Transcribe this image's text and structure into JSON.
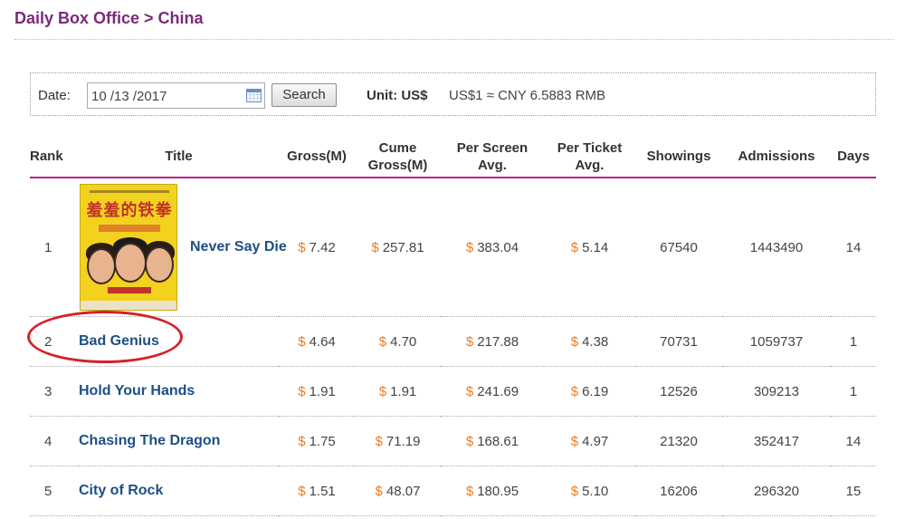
{
  "header": {
    "title": "Daily Box Office > China"
  },
  "filters": {
    "date_label": "Date:",
    "date_value": "10 /13 /2017",
    "search_label": "Search",
    "unit_label": "Unit: US$",
    "exchange_rate": "US$1 ≈ CNY 6.5883 RMB"
  },
  "table": {
    "columns": {
      "rank": "Rank",
      "title": "Title",
      "gross_line1": "Gross(M)",
      "cume_line1": "Cume",
      "cume_line2": "Gross(M)",
      "screen_line1": "Per Screen",
      "screen_line2": "Avg.",
      "ticket_line1": "Per Ticket",
      "ticket_line2": "Avg.",
      "showings": "Showings",
      "admissions": "Admissions",
      "days": "Days"
    },
    "currency_symbol": "$",
    "rows": [
      {
        "rank": "1",
        "title": "Never Say Die",
        "gross": "7.42",
        "cume": "257.81",
        "per_screen": "383.04",
        "per_ticket": "5.14",
        "showings": "67540",
        "admissions": "1443490",
        "days": "14"
      },
      {
        "rank": "2",
        "title": "Bad Genius",
        "gross": "4.64",
        "cume": "4.70",
        "per_screen": "217.88",
        "per_ticket": "4.38",
        "showings": "70731",
        "admissions": "1059737",
        "days": "1"
      },
      {
        "rank": "3",
        "title": "Hold Your Hands",
        "gross": "1.91",
        "cume": "1.91",
        "per_screen": "241.69",
        "per_ticket": "6.19",
        "showings": "12526",
        "admissions": "309213",
        "days": "1"
      },
      {
        "rank": "4",
        "title": "Chasing The Dragon",
        "gross": "1.75",
        "cume": "71.19",
        "per_screen": "168.61",
        "per_ticket": "4.97",
        "showings": "21320",
        "admissions": "352417",
        "days": "14"
      },
      {
        "rank": "5",
        "title": "City of Rock",
        "gross": "1.51",
        "cume": "48.07",
        "per_screen": "180.95",
        "per_ticket": "5.10",
        "showings": "16206",
        "admissions": "296320",
        "days": "15"
      }
    ]
  },
  "colors": {
    "title": "#7a2a7a",
    "header_rule": "#b8238f",
    "link": "#1d4f85",
    "currency": "#f07b1f",
    "annotation": "#d6202a"
  }
}
